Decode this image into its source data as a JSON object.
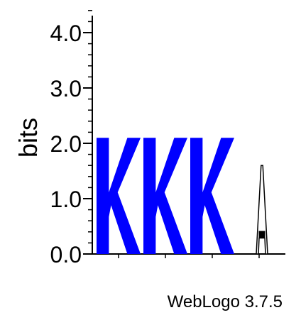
{
  "chart_data": {
    "type": "sequence-logo",
    "ylabel": "bits",
    "ylim": [
      0,
      4.0
    ],
    "yticks": [
      "0.0",
      "1.0",
      "2.0",
      "3.0",
      "4.0"
    ],
    "ytick_values": [
      0,
      1,
      2,
      3,
      4
    ],
    "minor_ticks_per_unit": 5,
    "positions": [
      {
        "index": 1,
        "stacks": [
          {
            "letter": "K",
            "bits": 2.1,
            "color": "#0000ff"
          }
        ]
      },
      {
        "index": 2,
        "stacks": [
          {
            "letter": "K",
            "bits": 2.1,
            "color": "#0000ff"
          }
        ]
      },
      {
        "index": 3,
        "stacks": [
          {
            "letter": "K",
            "bits": 2.1,
            "color": "#0000ff"
          }
        ]
      },
      {
        "index": 4,
        "stacks": [
          {
            "letter": "A",
            "bits": 1.6,
            "color": "#000000"
          }
        ]
      }
    ],
    "grid": false
  },
  "footer": {
    "credit": "WebLogo 3.7.5"
  }
}
